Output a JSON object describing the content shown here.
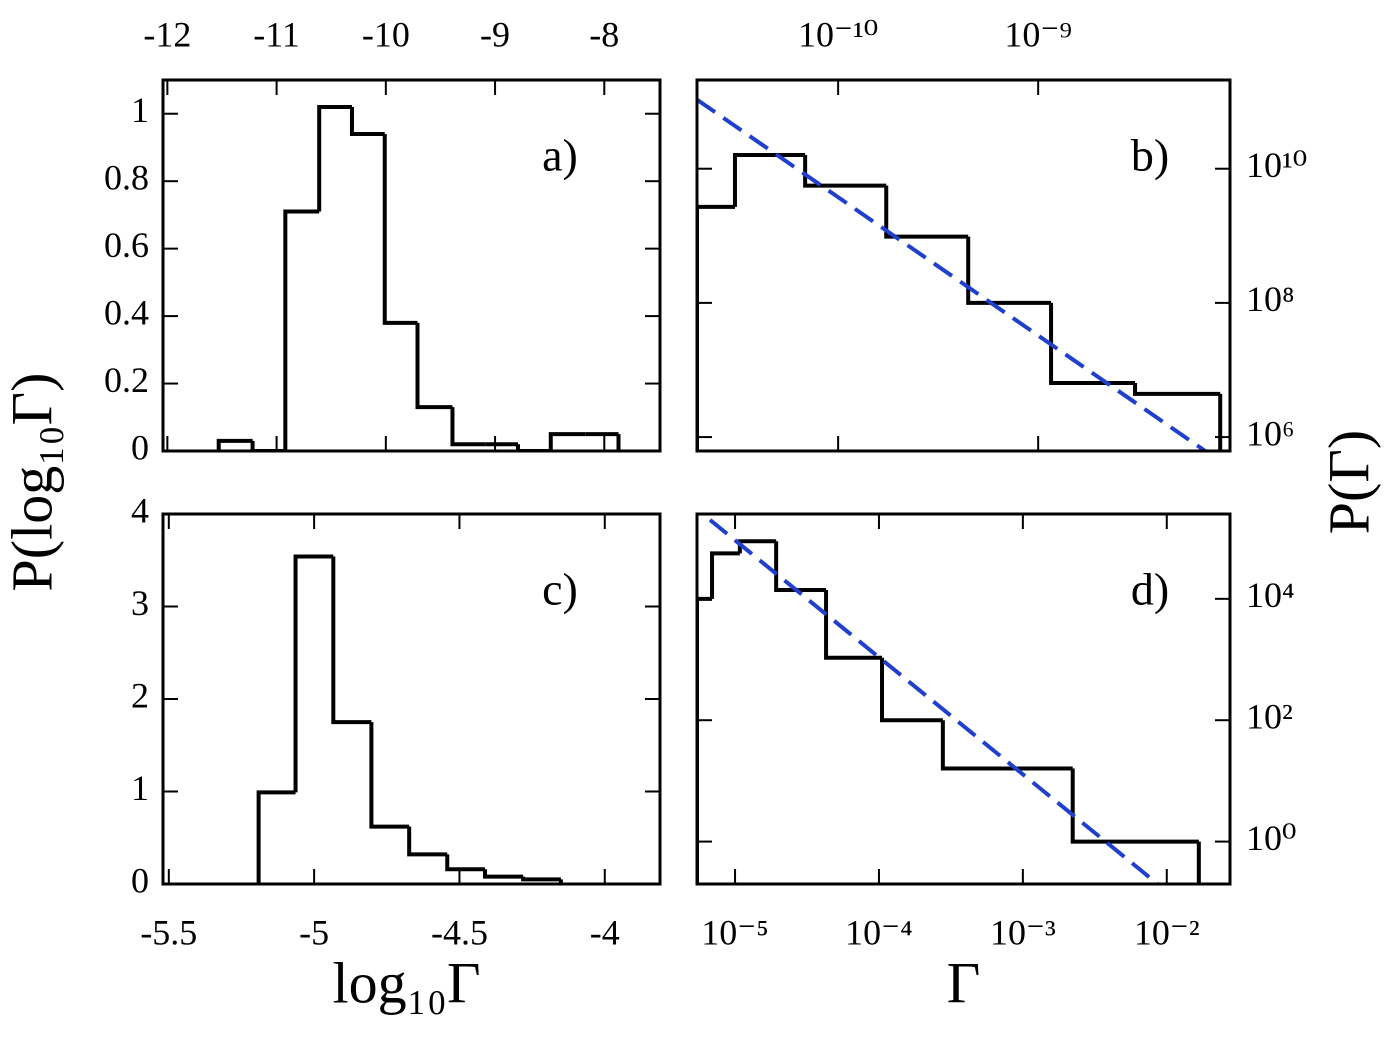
{
  "chart_data": [
    {
      "type": "histogram",
      "annotation": "a)",
      "ylabel": "P(log₁₀Γ)",
      "xaxis": "top",
      "yaxis": "left",
      "xlim": [
        -12.04,
        -7.49
      ],
      "xticks": [
        -12,
        -11,
        -10,
        -9,
        -8
      ],
      "ylim": [
        0,
        1.1
      ],
      "yticks": [
        0,
        0.2,
        0.4,
        0.6,
        0.8,
        1
      ],
      "bins": [
        -11.53,
        -11.22,
        -10.92,
        -10.61,
        -10.31,
        -10.01,
        -9.71,
        -9.39,
        -9.09,
        -8.79,
        -8.49,
        -8.17,
        -7.87
      ],
      "counts": [
        0.03,
        0,
        0.71,
        1.02,
        0.94,
        0.38,
        0.13,
        0.02,
        0.02,
        0,
        0.05,
        0.05
      ],
      "color": "#000000"
    },
    {
      "type": "histogram",
      "annotation": "b)",
      "ylabel": "P(Γ)",
      "xaxis": "top",
      "yaxis": "right",
      "xscale": "log",
      "yscale": "log",
      "xlim": [
        1.97e-11,
        9.1e-09
      ],
      "xticks": [
        {
          "value": 1e-10,
          "label": "10⁻¹⁰"
        },
        {
          "value": 1e-09,
          "label": "10⁻⁹"
        }
      ],
      "ylim": [
        620000.0,
        210000000000.0
      ],
      "yticks": [
        {
          "value": 1000000.0,
          "label": "10⁶"
        },
        {
          "value": 100000000.0,
          "label": "10⁸"
        },
        {
          "value": 10000000000.0,
          "label": "10¹⁰"
        }
      ],
      "bins": [
        1.97e-11,
        3.05e-11,
        6.84e-11,
        1.74e-10,
        4.47e-10,
        1.16e-09,
        3.05e-09,
        8.13e-09
      ],
      "counts": [
        2700000000.0,
        16000000000.0,
        5600000000.0,
        970000000.0,
        100000000.0,
        6400000.0,
        4400000.0
      ],
      "color": "#000000",
      "fit": {
        "x": [
          1.97e-11,
          6.84e-09
        ],
        "values": [
          107000000000.0,
          620000.0
        ],
        "color": "#1f3fcc"
      }
    },
    {
      "type": "histogram",
      "annotation": "c)",
      "xlabel": "log₁₀Γ",
      "xaxis": "bottom",
      "yaxis": "left",
      "xlim": [
        -5.52,
        -3.81
      ],
      "xticks": [
        -5.5,
        -5,
        -4.5,
        -4
      ],
      "ylim": [
        0,
        4
      ],
      "yticks": [
        0,
        1,
        2,
        3,
        4
      ],
      "bins": [
        -5.191,
        -5.064,
        -4.934,
        -4.803,
        -4.673,
        -4.542,
        -4.412,
        -4.281,
        -4.151
      ],
      "counts": [
        0.99,
        3.54,
        1.75,
        0.62,
        0.32,
        0.16,
        0.08,
        0.05
      ],
      "color": "#000000"
    },
    {
      "type": "histogram",
      "annotation": "d)",
      "xlabel": "Γ",
      "xaxis": "bottom",
      "yaxis": "right",
      "xscale": "log",
      "yscale": "log",
      "xlim": [
        5.44e-06,
        0.0275
      ],
      "xticks": [
        {
          "value": 1e-05,
          "label": "10⁻⁵"
        },
        {
          "value": 0.0001,
          "label": "10⁻⁴"
        },
        {
          "value": 0.001,
          "label": "10⁻³"
        },
        {
          "value": 0.01,
          "label": "10⁻²"
        }
      ],
      "ylim": [
        0.2,
        250000.0
      ],
      "yticks": [
        {
          "value": 1,
          "label": "10⁰"
        },
        {
          "value": 100,
          "label": "10²"
        },
        {
          "value": 10000,
          "label": "10⁴"
        }
      ],
      "bins": [
        5.44e-06,
        6.92e-06,
        1.08e-05,
        1.93e-05,
        4.29e-05,
        0.000105,
        0.000278,
        0.00222,
        0.0167
      ],
      "counts": [
        10000,
        56000,
        89000,
        14000,
        1070,
        100,
        16,
        1
      ],
      "color": "#000000",
      "fit": {
        "x": [
          6.7e-06,
          0.00865
        ],
        "values": [
          200000.0,
          0.2
        ],
        "color": "#1f3fcc"
      }
    }
  ]
}
